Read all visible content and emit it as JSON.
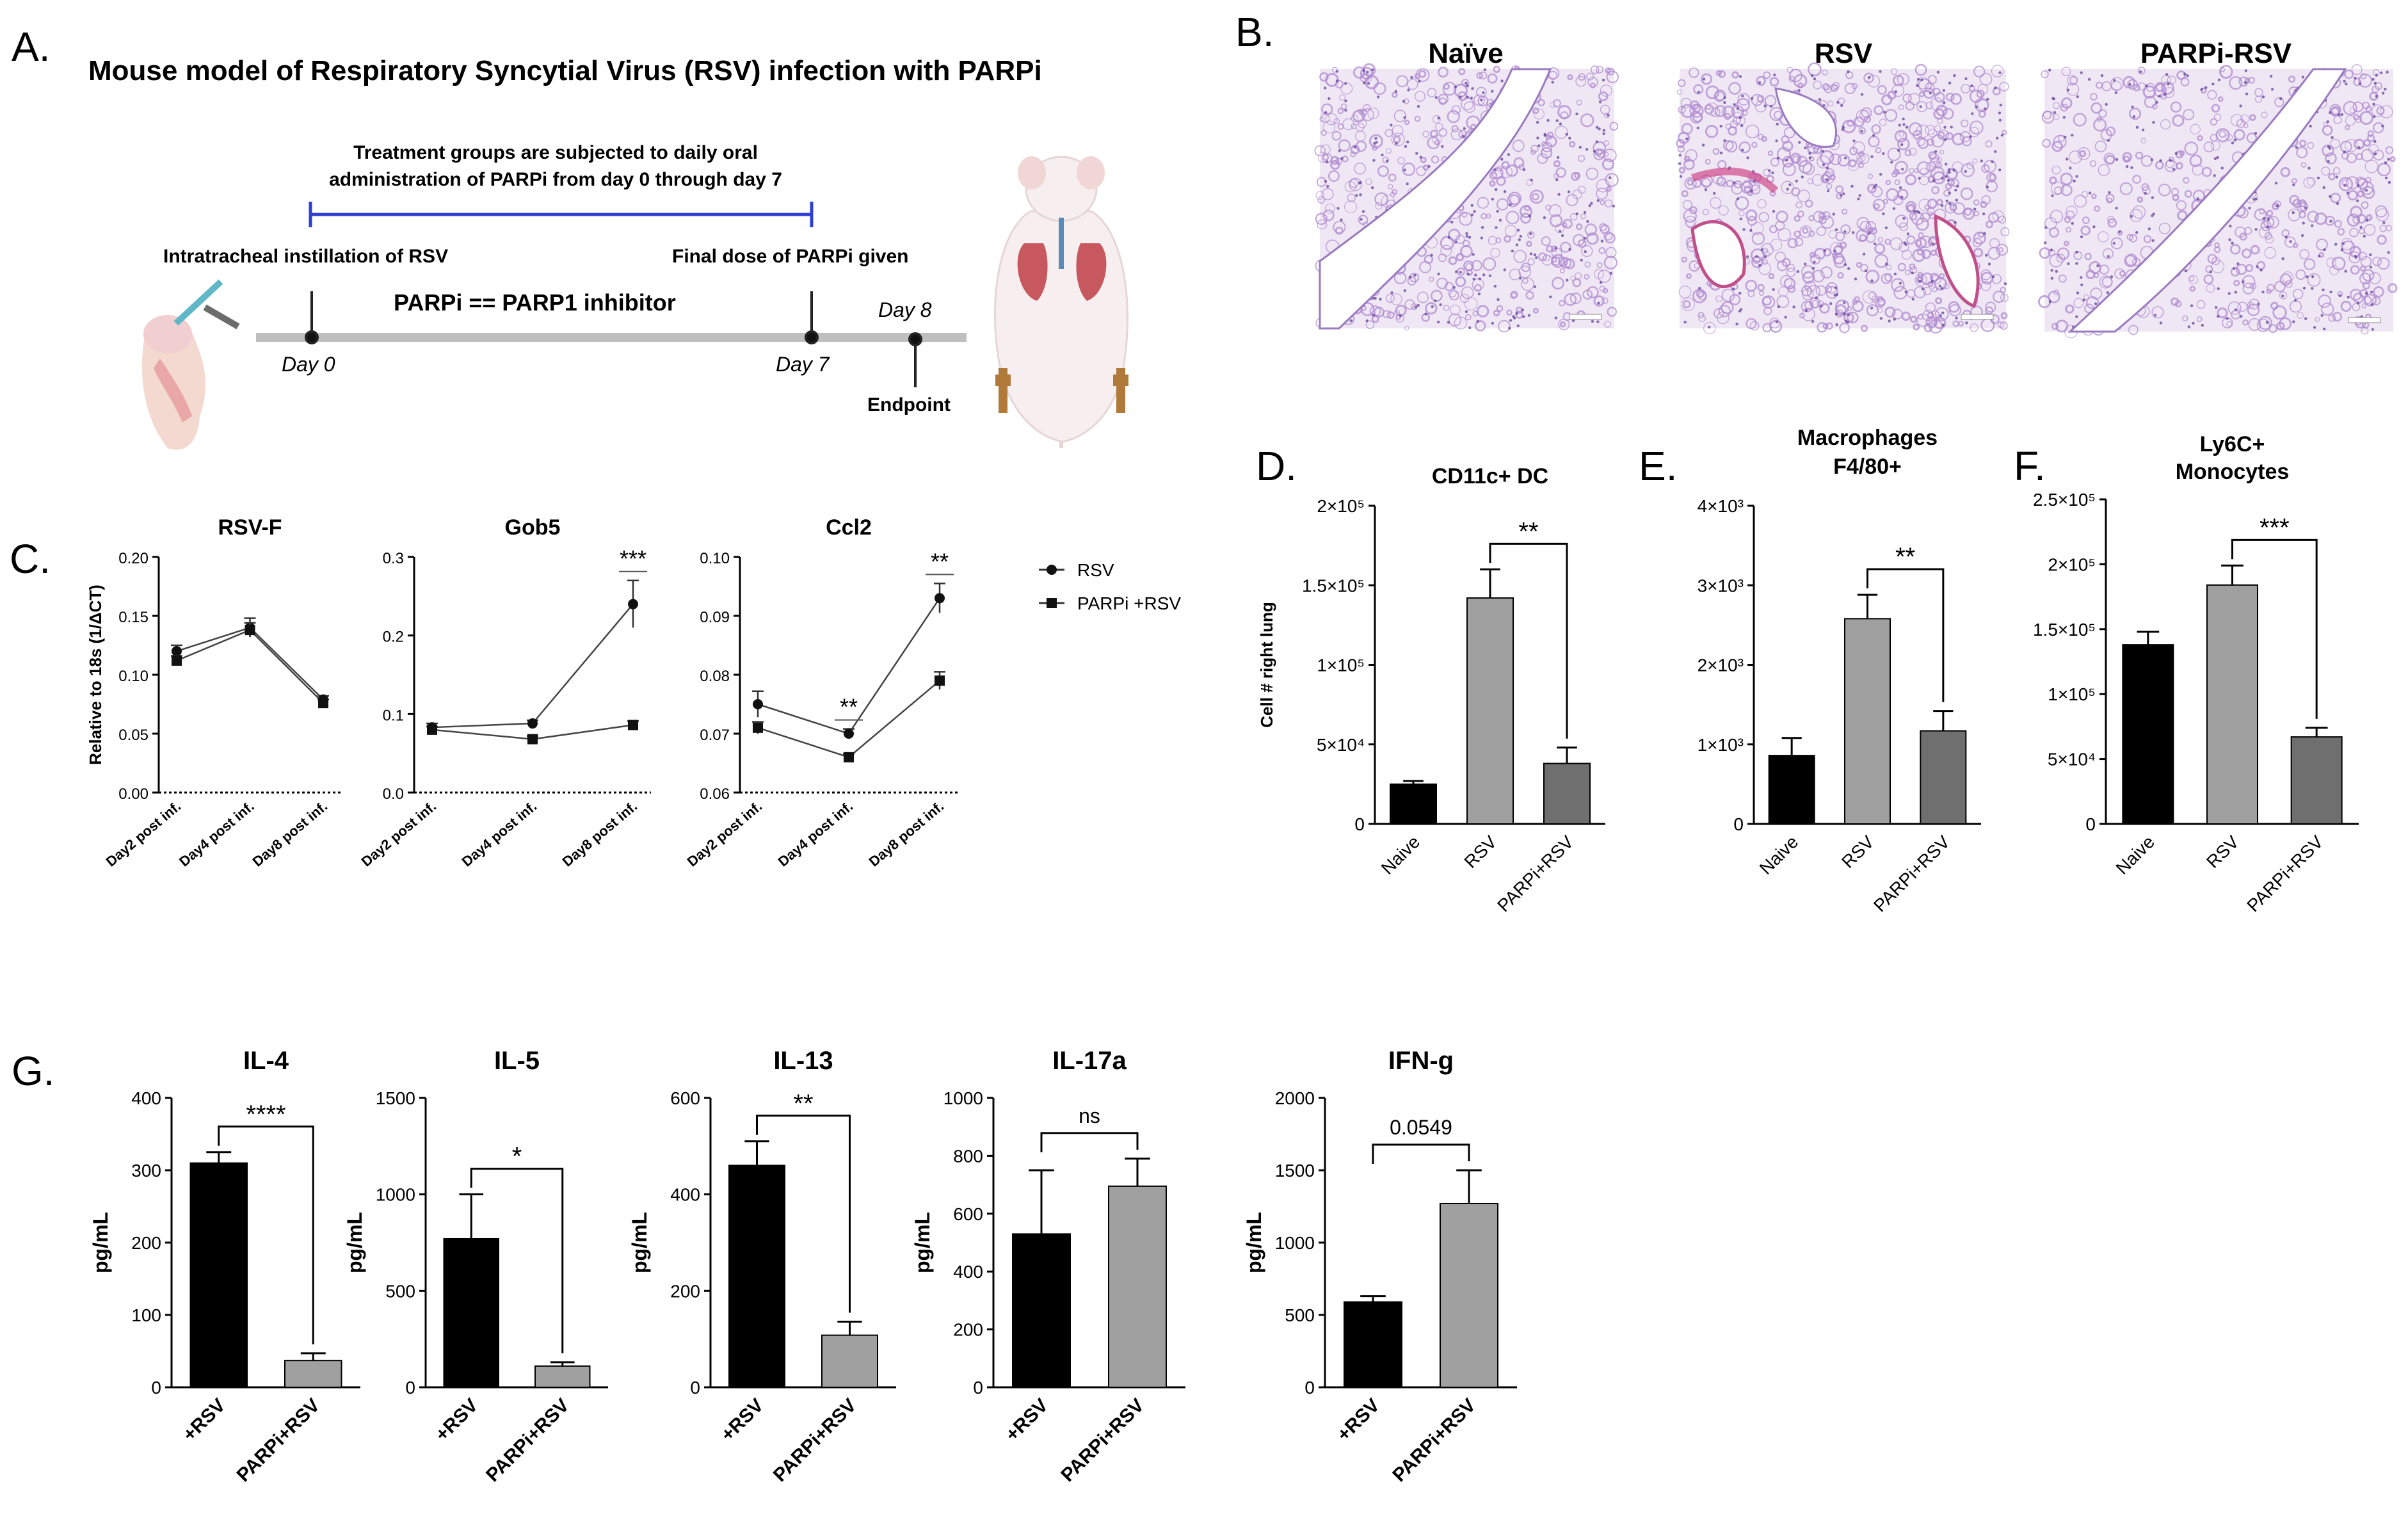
{
  "panel_letters": {
    "a": "A.",
    "b": "B.",
    "c": "C.",
    "d": "D.",
    "e": "E.",
    "f": "F.",
    "g": "G."
  },
  "panel_a": {
    "title": "Mouse model of Respiratory Syncytial Virus (RSV) infection with PARPi",
    "treatment_line1": "Treatment groups are subjected to daily oral",
    "treatment_line2": "administration of PARPi from day 0 through day 7",
    "instillation": "Intratracheal instillation of RSV",
    "final_dose": "Final dose of PARPi given",
    "parpi_def": "PARPi == PARP1 inhibitor",
    "day0": "Day 0",
    "day7": "Day 7",
    "day8": "Day 8",
    "endpoint": "Endpoint",
    "colors": {
      "bracket": "#2f3fd0",
      "timeline": "#bfbfbf"
    }
  },
  "panel_b": {
    "labels": [
      "Naïve",
      "RSV",
      "PARPi-RSV"
    ],
    "colors": {
      "tissue": "#b08ad0",
      "background": "#efe8f4"
    }
  },
  "chart_data": [
    {
      "id": "C1",
      "type": "line",
      "title": "RSV-F",
      "ylabel": "Relative to 18s (1/ΔCT)",
      "categories": [
        "Day2 post inf.",
        "Day4 post inf.",
        "Day8 post inf."
      ],
      "ylim": [
        0.0,
        0.2
      ],
      "yticks": [
        "0.00",
        "0.05",
        "0.10",
        "0.15",
        "0.20"
      ],
      "series": [
        {
          "name": "RSV",
          "marker": "circle",
          "values": [
            0.12,
            0.14,
            0.079
          ],
          "errors": [
            0.005,
            0.008,
            0.003
          ]
        },
        {
          "name": "PARPi +RSV",
          "marker": "square",
          "values": [
            0.112,
            0.138,
            0.076
          ],
          "errors": [
            0.004,
            0.006,
            0.003
          ]
        }
      ],
      "annotations": []
    },
    {
      "id": "C2",
      "type": "line",
      "title": "Gob5",
      "ylabel": "",
      "categories": [
        "Day2 post inf.",
        "Day4 post inf.",
        "Day8 post inf."
      ],
      "ylim": [
        0.0,
        0.3
      ],
      "yticks": [
        "0.0",
        "0.1",
        "0.2",
        "0.3"
      ],
      "series": [
        {
          "name": "RSV",
          "marker": "circle",
          "values": [
            0.083,
            0.088,
            0.24
          ],
          "errors": [
            0.005,
            0.004,
            0.03
          ]
        },
        {
          "name": "PARPi +RSV",
          "marker": "square",
          "values": [
            0.08,
            0.068,
            0.086
          ],
          "errors": [
            0.004,
            0.004,
            0.005
          ]
        }
      ],
      "annotations": [
        {
          "cat": 2,
          "text": "***"
        }
      ]
    },
    {
      "id": "C3",
      "type": "line",
      "title": "Ccl2",
      "ylabel": "",
      "categories": [
        "Day2 post inf.",
        "Day4 post inf.",
        "Day8 post inf."
      ],
      "ylim": [
        0.06,
        0.1
      ],
      "yticks": [
        "0.06",
        "0.07",
        "0.08",
        "0.09",
        "0.10"
      ],
      "series": [
        {
          "name": "RSV",
          "marker": "circle",
          "values": [
            0.075,
            0.07,
            0.093
          ],
          "errors": [
            0.0022,
            0.0008,
            0.0025
          ]
        },
        {
          "name": "PARPi +RSV",
          "marker": "square",
          "values": [
            0.071,
            0.066,
            0.079
          ],
          "errors": [
            0.001,
            0.0006,
            0.0015
          ]
        }
      ],
      "annotations": [
        {
          "cat": 1,
          "text": "**"
        },
        {
          "cat": 2,
          "text": "**"
        }
      ]
    },
    {
      "id": "D",
      "type": "bar",
      "title": "CD11c+ DC",
      "ylabel": "Cell # right lung",
      "categories": [
        "Naive",
        "RSV",
        "PARPi+RSV"
      ],
      "values": [
        25000,
        142000,
        38000
      ],
      "errors": [
        2000,
        18000,
        10000
      ],
      "ylim": [
        0,
        200000
      ],
      "yticks": [
        "0",
        "5×10⁴",
        "1×10⁵",
        "1.5×10⁵",
        "2×10⁵"
      ],
      "colors": [
        "#000000",
        "#a0a0a0",
        "#6f6f6f"
      ],
      "sig": {
        "from": 1,
        "to": 2,
        "text": "**"
      }
    },
    {
      "id": "E",
      "type": "bar",
      "title": "Macrophages F4/80+",
      "ylabel": "",
      "categories": [
        "Naive",
        "RSV",
        "PARPi+RSV"
      ],
      "values": [
        860,
        2580,
        1170
      ],
      "errors": [
        220,
        300,
        250
      ],
      "ylim": [
        0,
        4000
      ],
      "yticks": [
        "0",
        "1×10³",
        "2×10³",
        "3×10³",
        "4×10³"
      ],
      "colors": [
        "#000000",
        "#a0a0a0",
        "#6f6f6f"
      ],
      "sig": {
        "from": 1,
        "to": 2,
        "text": "**"
      }
    },
    {
      "id": "F",
      "type": "bar",
      "title": "Ly6C+ Monocytes",
      "ylabel": "",
      "categories": [
        "Naive",
        "RSV",
        "PARPi+RSV"
      ],
      "values": [
        138000,
        184000,
        67000
      ],
      "errors": [
        10000,
        15000,
        7000
      ],
      "ylim": [
        0,
        250000
      ],
      "yticks": [
        "0",
        "5×10⁴",
        "1×10⁵",
        "1.5×10⁵",
        "2×10⁵",
        "2.5×10⁵"
      ],
      "colors": [
        "#000000",
        "#a0a0a0",
        "#6f6f6f"
      ],
      "sig": {
        "from": 1,
        "to": 2,
        "text": "***"
      }
    },
    {
      "id": "G1",
      "type": "bar",
      "title": "IL-4",
      "ylabel": "pg/mL",
      "categories": [
        "+RSV",
        "PARPi+RSV"
      ],
      "values": [
        310,
        37
      ],
      "errors": [
        15,
        10
      ],
      "ylim": [
        0,
        400
      ],
      "yticks": [
        "0",
        "100",
        "200",
        "300",
        "400"
      ],
      "colors": [
        "#000000",
        "#a0a0a0"
      ],
      "sig": {
        "from": 0,
        "to": 1,
        "text": "****"
      }
    },
    {
      "id": "G2",
      "type": "bar",
      "title": "IL-5",
      "ylabel": "pg/mL",
      "categories": [
        "+RSV",
        "PARPi+RSV"
      ],
      "values": [
        770,
        110
      ],
      "errors": [
        230,
        20
      ],
      "ylim": [
        0,
        1500
      ],
      "yticks": [
        "0",
        "500",
        "1000",
        "1500"
      ],
      "colors": [
        "#000000",
        "#a0a0a0"
      ],
      "sig": {
        "from": 0,
        "to": 1,
        "text": "*"
      }
    },
    {
      "id": "G3",
      "type": "bar",
      "title": "IL-13",
      "ylabel": "pg/mL",
      "categories": [
        "+RSV",
        "PARPi+RSV"
      ],
      "values": [
        460,
        108
      ],
      "errors": [
        50,
        28
      ],
      "ylim": [
        0,
        600
      ],
      "yticks": [
        "0",
        "200",
        "400",
        "600"
      ],
      "colors": [
        "#000000",
        "#a0a0a0"
      ],
      "sig": {
        "from": 0,
        "to": 1,
        "text": "**"
      }
    },
    {
      "id": "G4",
      "type": "bar",
      "title": "IL-17a",
      "ylabel": "pg/mL",
      "categories": [
        "+RSV",
        "PARPi+RSV"
      ],
      "values": [
        530,
        695
      ],
      "errors": [
        220,
        95
      ],
      "ylim": [
        0,
        1000
      ],
      "yticks": [
        "0",
        "200",
        "400",
        "600",
        "800",
        "1000"
      ],
      "colors": [
        "#000000",
        "#a0a0a0"
      ],
      "sig": {
        "from": 0,
        "to": 1,
        "text": "ns"
      }
    },
    {
      "id": "G5",
      "type": "bar",
      "title": "IFN-g",
      "ylabel": "pg/mL",
      "categories": [
        "+RSV",
        "PARPi+RSV"
      ],
      "values": [
        590,
        1270
      ],
      "errors": [
        40,
        230
      ],
      "ylim": [
        0,
        2000
      ],
      "yticks": [
        "0",
        "500",
        "1000",
        "1500",
        "2000"
      ],
      "colors": [
        "#000000",
        "#a0a0a0"
      ],
      "sig": {
        "from": 0,
        "to": 1,
        "text": "0.0549"
      }
    }
  ],
  "legend_c": [
    {
      "label": "RSV",
      "marker": "circle"
    },
    {
      "label": "PARPi +RSV",
      "marker": "square"
    }
  ]
}
